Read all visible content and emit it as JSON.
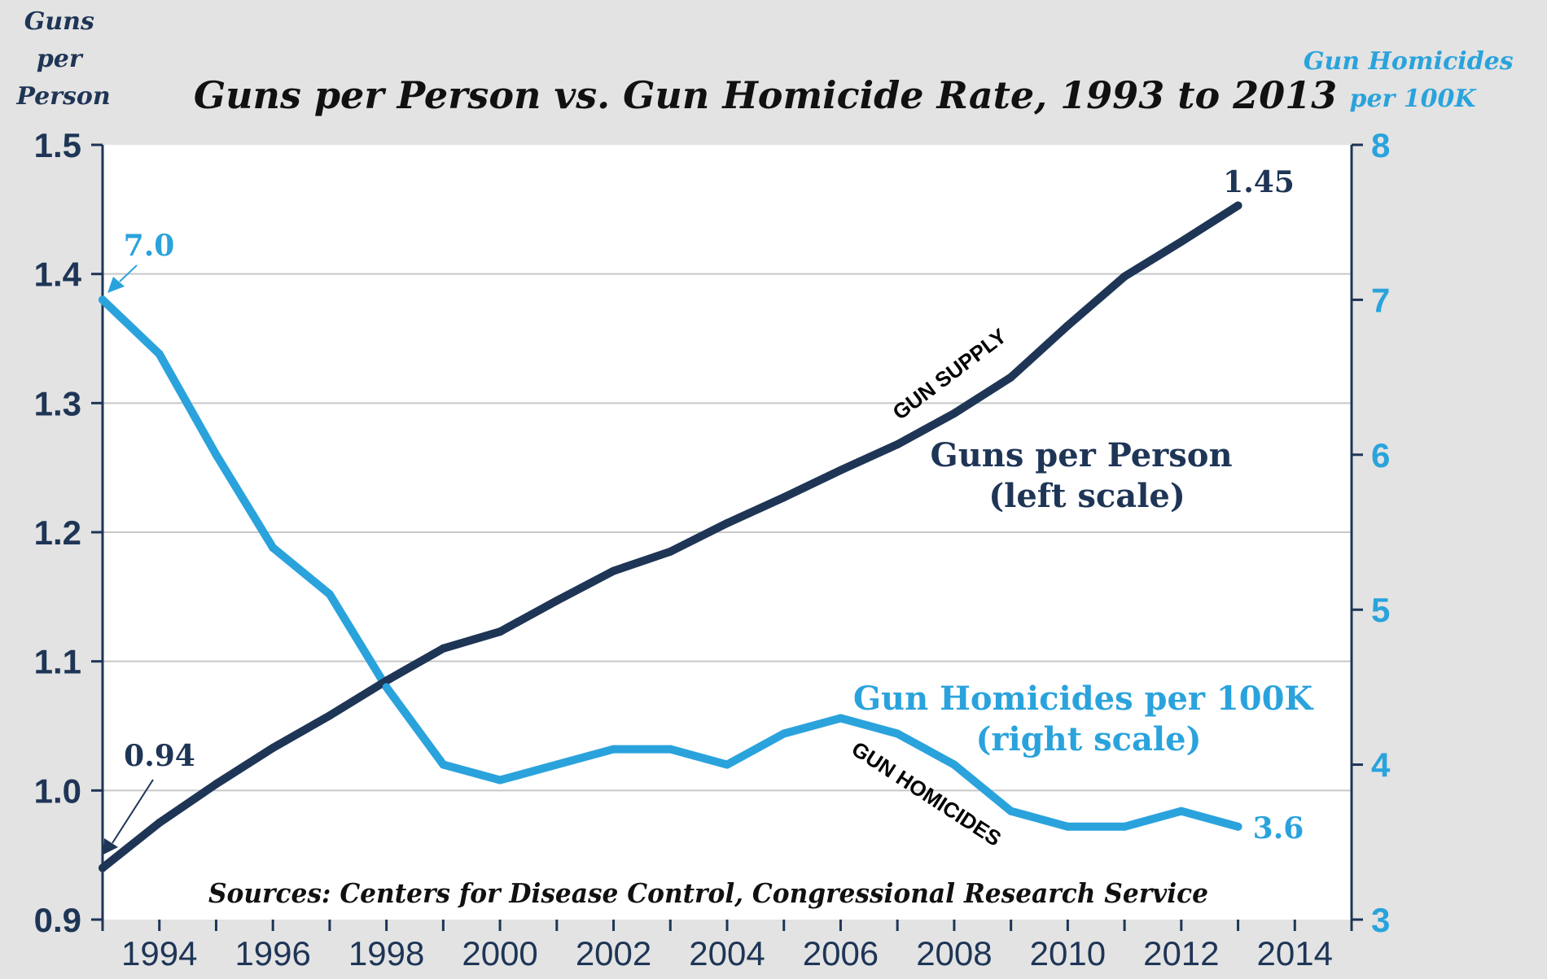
{
  "chart_data": {
    "type": "line",
    "title": "Guns per Person vs. Gun Homicide Rate, 1993 to 2013",
    "left_axis": {
      "label_lines": [
        "Guns",
        "per",
        "Person"
      ],
      "ylim": [
        0.9,
        1.5
      ],
      "ticks": [
        "0.9",
        "1.0",
        "1.1",
        "1.2",
        "1.3",
        "1.4",
        "1.5"
      ]
    },
    "right_axis": {
      "label_lines": [
        "Gun Homicides",
        "per 100K"
      ],
      "ylim": [
        3,
        8
      ],
      "ticks": [
        "3",
        "4",
        "5",
        "6",
        "7",
        "8"
      ]
    },
    "x_axis": {
      "xlim": [
        1993,
        2015
      ],
      "ticks": [
        "1994",
        "1996",
        "1998",
        "2000",
        "2002",
        "2004",
        "2006",
        "2008",
        "2010",
        "2012",
        "2014"
      ]
    },
    "grid": true,
    "x": [
      1993,
      1994,
      1995,
      1996,
      1997,
      1998,
      1999,
      2000,
      2001,
      2002,
      2003,
      2004,
      2005,
      2006,
      2007,
      2008,
      2009,
      2010,
      2011,
      2012,
      2013
    ],
    "series": [
      {
        "name": "Guns per Person",
        "axis": "left",
        "color": "#1e3556",
        "values": [
          0.94,
          0.975,
          1.005,
          1.033,
          1.058,
          1.085,
          1.11,
          1.123,
          1.147,
          1.17,
          1.185,
          1.207,
          1.227,
          1.248,
          1.268,
          1.292,
          1.32,
          1.36,
          1.398,
          1.425,
          1.453
        ],
        "label_lines": [
          "Guns per Person",
          "(left scale)"
        ],
        "annotation": "GUN SUPPLY"
      },
      {
        "name": "Gun Homicides per 100K",
        "axis": "right",
        "color": "#2aa3dc",
        "values": [
          7.0,
          6.65,
          6.0,
          5.4,
          5.1,
          4.5,
          4.0,
          3.9,
          4.0,
          4.1,
          4.1,
          4.0,
          4.2,
          4.3,
          4.2,
          4.0,
          3.7,
          3.6,
          3.6,
          3.7,
          3.6
        ],
        "label_lines": [
          "Gun Homicides per 100K",
          "(right scale)"
        ],
        "annotation": "GUN HOMICIDES"
      }
    ],
    "data_labels": {
      "guns_start": "0.94",
      "guns_end": "1.45",
      "homicides_start": "7.0",
      "homicides_end": "3.6"
    },
    "source": "Sources: Centers for Disease Control, Congressional Research Service"
  }
}
